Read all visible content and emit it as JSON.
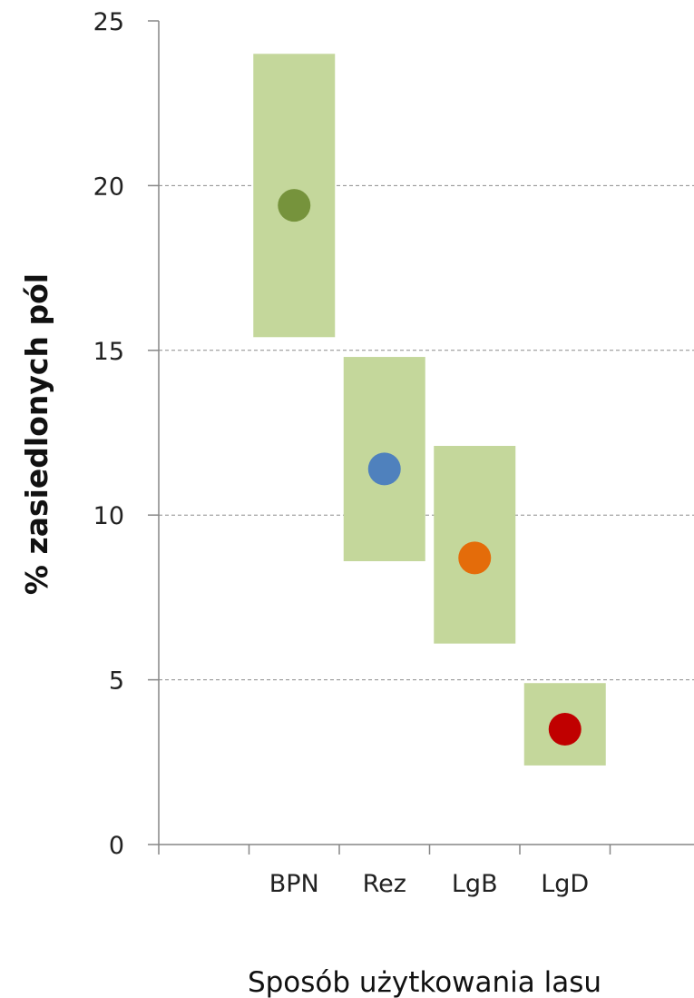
{
  "chart_data": {
    "type": "scatter",
    "title": "",
    "xlabel": "Sposób użytkowania lasu",
    "ylabel": "% zasiedlonych pól",
    "ylim": [
      0,
      25
    ],
    "yticks": [
      "0",
      "5",
      "10",
      "15",
      "20",
      "25"
    ],
    "grid": "horizontal dashed",
    "legend": "none",
    "categories": [
      "BPN",
      "Rez",
      "LgB",
      "LgD"
    ],
    "series": [
      {
        "values": [
          19.4,
          11.4,
          8.7,
          3.5
        ],
        "lower": [
          15.4,
          8.6,
          6.1,
          2.4
        ],
        "upper": [
          24.0,
          14.8,
          12.1,
          4.9
        ]
      }
    ],
    "colors": {
      "range_fill": "#c4d79b",
      "points": [
        "#76933c",
        "#4f81bd",
        "#e46c0a",
        "#c00000"
      ],
      "grid": "#8c8c8c",
      "axis": "#868686"
    }
  }
}
